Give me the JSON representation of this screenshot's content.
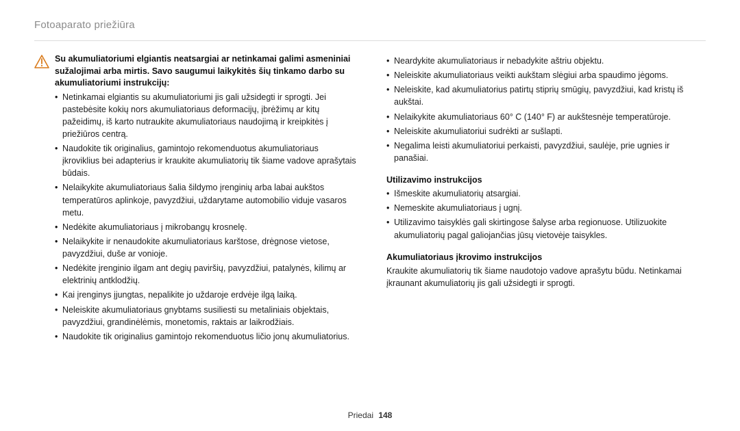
{
  "header": {
    "title": "Fotoaparato priežiūra"
  },
  "warning": {
    "icon_name": "warning-triangle-icon",
    "heading": "Su akumuliatoriumi elgiantis neatsargiai ar netinkamai galimi asmeniniai sužalojimai arba mirtis. Savo saugumui laikykitės šių tinkamo darbo su akumuliatoriumi instrukcijų:"
  },
  "left_bullets": [
    "Netinkamai elgiantis su akumuliatoriumi jis gali užsidegti ir sprogti. Jei pastebėsite kokių nors akumuliatoriaus deformacijų, įbrėžimų ar kitų pažeidimų, iš karto nutraukite akumuliatoriaus naudojimą ir kreipkitės į priežiūros centrą.",
    "Naudokite tik originalius, gamintojo rekomenduotus akumuliatoriaus įkroviklius bei adapterius ir kraukite akumuliatorių tik šiame vadove aprašytais būdais.",
    "Nelaikykite akumuliatoriaus šalia šildymo įrenginių arba labai aukštos temperatūros aplinkoje, pavyzdžiui, uždarytame automobilio viduje vasaros metu.",
    "Nedėkite akumuliatoriaus į mikrobangų krosnelę.",
    "Nelaikykite ir nenaudokite akumuliatoriaus karštose, drėgnose vietose, pavyzdžiui, duše ar vonioje.",
    "Nedėkite įrenginio ilgam ant degių paviršių, pavyzdžiui, patalynės, kilimų ar elektrinių antklodžių.",
    "Kai įrenginys įjungtas, nepalikite jo uždaroje erdvėje ilgą laiką.",
    "Neleiskite akumuliatoriaus gnybtams susiliesti su metaliniais objektais, pavyzdžiui, grandinėlėmis, monetomis, raktais ar laikrodžiais.",
    "Naudokite tik originalius gamintojo rekomenduotus ličio jonų akumuliatorius."
  ],
  "right_top_bullets": [
    "Neardykite akumuliatoriaus ir nebadykite aštriu objektu.",
    "Neleiskite akumuliatoriaus veikti aukštam slėgiui arba spaudimo jėgoms.",
    "Neleiskite, kad akumuliatorius patirtų stiprių smūgių, pavyzdžiui, kad kristų iš aukštai.",
    "Nelaikykite akumuliatoriaus 60° C (140° F) ar aukštesnėje temperatūroje.",
    "Neleiskite akumuliatoriui sudrėkti ar sušlapti.",
    "Negalima leisti akumuliatoriui perkaisti, pavyzdžiui, saulėje, prie ugnies ir panašiai."
  ],
  "util": {
    "title": "Utilizavimo instrukcijos",
    "bullets": [
      "Išmeskite akumuliatorių atsargiai.",
      "Nemeskite akumuliatoriaus į ugnį.",
      "Utilizavimo taisyklės gali skirtingose šalyse arba regionuose. Utilizuokite akumuliatorių pagal galiojančias jūsų vietovėje taisykles."
    ]
  },
  "charging": {
    "title": "Akumuliatoriaus įkrovimo instrukcijos",
    "text": "Kraukite akumuliatorių tik šiame naudotojo vadove aprašytu būdu. Netinkamai įkraunant akumuliatorių jis gali užsidegti ir sprogti."
  },
  "footer": {
    "label": "Priedai",
    "page": "148"
  },
  "style": {
    "icon_stroke": "#d97a1a",
    "icon_fill": "#ffffff"
  }
}
